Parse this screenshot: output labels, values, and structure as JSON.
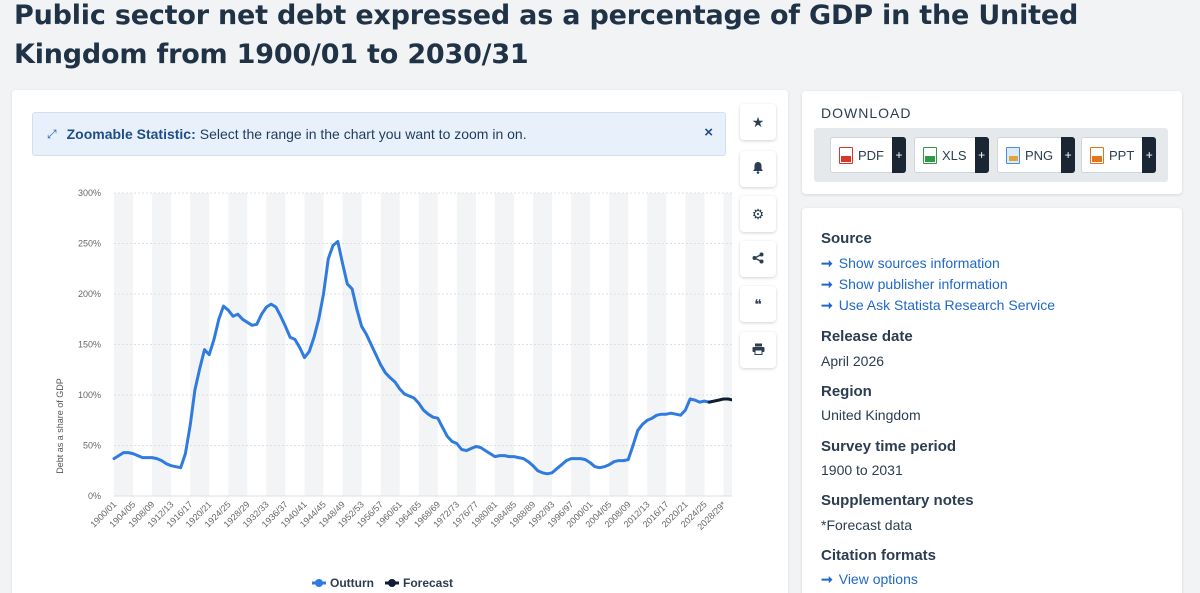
{
  "title": "Public sector net debt expressed as a percentage of GDP in the United Kingdom from 1900/01 to 2030/31",
  "zoom_banner": {
    "label": "Zoomable Statistic:",
    "text": "Select the range in the chart you want to zoom in on.",
    "close_icon": "×"
  },
  "tools": [
    {
      "name": "star-icon",
      "glyph": "★"
    },
    {
      "name": "bell-icon",
      "glyph": "🔔"
    },
    {
      "name": "gear-icon",
      "glyph": "⚙"
    },
    {
      "name": "share-icon",
      "glyph": "⋖"
    },
    {
      "name": "quote-icon",
      "glyph": "❝"
    },
    {
      "name": "print-icon",
      "glyph": "⎙"
    }
  ],
  "download": {
    "title": "DOWNLOAD",
    "formats": [
      {
        "label": "PDF",
        "color": "#d9352b"
      },
      {
        "label": "XLS",
        "color": "#2e9a48"
      },
      {
        "label": "PNG",
        "color": "#4b8fd6"
      },
      {
        "label": "PPT",
        "color": "#e3761c"
      }
    ],
    "plus": "+"
  },
  "info": {
    "source_heading": "Source",
    "source_links": [
      "Show sources information",
      "Show publisher information",
      "Use Ask Statista Research Service"
    ],
    "release_heading": "Release date",
    "release_value": "April 2026",
    "region_heading": "Region",
    "region_value": "United Kingdom",
    "survey_heading": "Survey time period",
    "survey_value": "1900 to 2031",
    "notes_heading": "Supplementary notes",
    "notes_value": "*Forecast data",
    "citation_heading": "Citation formats",
    "citation_link": "View options",
    "arrow": "➞"
  },
  "chart_data": {
    "type": "line",
    "title": "",
    "xlabel": "",
    "ylabel": "Debt as a share of GDP",
    "ylim": [
      0,
      300
    ],
    "yticks": [
      "0%",
      "50%",
      "100%",
      "150%",
      "200%",
      "250%",
      "300%"
    ],
    "xtick_labels": [
      "1900/01",
      "1904/05",
      "1908/09",
      "1912/13",
      "1916/17",
      "1920/21",
      "1924/25",
      "1928/29",
      "1932/33",
      "1936/37",
      "1940/41",
      "1944/45",
      "1948/49",
      "1952/53",
      "1956/57",
      "1960/61",
      "1964/65",
      "1968/69",
      "1972/73",
      "1976/77",
      "1980/81",
      "1984/85",
      "1988/89",
      "1992/93",
      "1996/97",
      "2000/01",
      "2004/05",
      "2008/09",
      "2012/13",
      "2016/17",
      "2020/21",
      "2024/25",
      "2028/29*"
    ],
    "x_start": 1900,
    "x_end": 2030,
    "grid": true,
    "legend_position": "bottom",
    "colors": {
      "outturn": "#2f7be0",
      "forecast": "#0f1f33"
    },
    "series": [
      {
        "name": "Outturn",
        "x": [
          1900,
          1901,
          1902,
          1903,
          1904,
          1905,
          1906,
          1907,
          1908,
          1909,
          1910,
          1911,
          1912,
          1913,
          1914,
          1915,
          1916,
          1917,
          1918,
          1919,
          1920,
          1921,
          1922,
          1923,
          1924,
          1925,
          1926,
          1927,
          1928,
          1929,
          1930,
          1931,
          1932,
          1933,
          1934,
          1935,
          1936,
          1937,
          1938,
          1939,
          1940,
          1941,
          1942,
          1943,
          1944,
          1945,
          1946,
          1947,
          1948,
          1949,
          1950,
          1951,
          1952,
          1953,
          1954,
          1955,
          1956,
          1957,
          1958,
          1959,
          1960,
          1961,
          1962,
          1963,
          1964,
          1965,
          1966,
          1967,
          1968,
          1969,
          1970,
          1971,
          1972,
          1973,
          1974,
          1975,
          1976,
          1977,
          1978,
          1979,
          1980,
          1981,
          1982,
          1983,
          1984,
          1985,
          1986,
          1987,
          1988,
          1989,
          1990,
          1991,
          1992,
          1993,
          1994,
          1995,
          1996,
          1997,
          1998,
          1999,
          2000,
          2001,
          2002,
          2003,
          2004,
          2005,
          2006,
          2007,
          2008,
          2009,
          2010,
          2011,
          2012,
          2013,
          2014,
          2015,
          2016,
          2017,
          2018,
          2019,
          2020,
          2021,
          2022,
          2023,
          2024,
          2025
        ],
        "values": [
          37,
          40,
          43,
          43,
          42,
          40,
          38,
          38,
          38,
          37,
          35,
          32,
          30,
          29,
          28,
          42,
          70,
          105,
          126,
          145,
          140,
          155,
          175,
          188,
          184,
          178,
          180,
          175,
          172,
          169,
          170,
          180,
          187,
          190,
          187,
          178,
          168,
          157,
          155,
          147,
          137,
          143,
          157,
          175,
          200,
          235,
          248,
          252,
          230,
          210,
          205,
          185,
          168,
          160,
          150,
          140,
          130,
          122,
          117,
          113,
          106,
          101,
          99,
          97,
          92,
          85,
          81,
          78,
          77,
          68,
          59,
          54,
          52,
          46,
          45,
          47,
          49,
          48,
          45,
          42,
          39,
          40,
          40,
          39,
          39,
          38,
          37,
          34,
          30,
          25,
          23,
          22,
          23,
          27,
          31,
          35,
          37,
          37,
          37,
          36,
          33,
          29,
          28,
          29,
          31,
          34,
          35,
          35,
          36,
          50,
          65,
          71,
          75,
          77,
          80,
          81,
          81,
          82,
          81,
          80,
          85,
          96,
          95,
          93,
          94,
          93
        ]
      },
      {
        "name": "Forecast",
        "x": [
          2025,
          2026,
          2027,
          2028,
          2029,
          2030
        ],
        "values": [
          93,
          94,
          95,
          96,
          96,
          95
        ]
      }
    ]
  }
}
